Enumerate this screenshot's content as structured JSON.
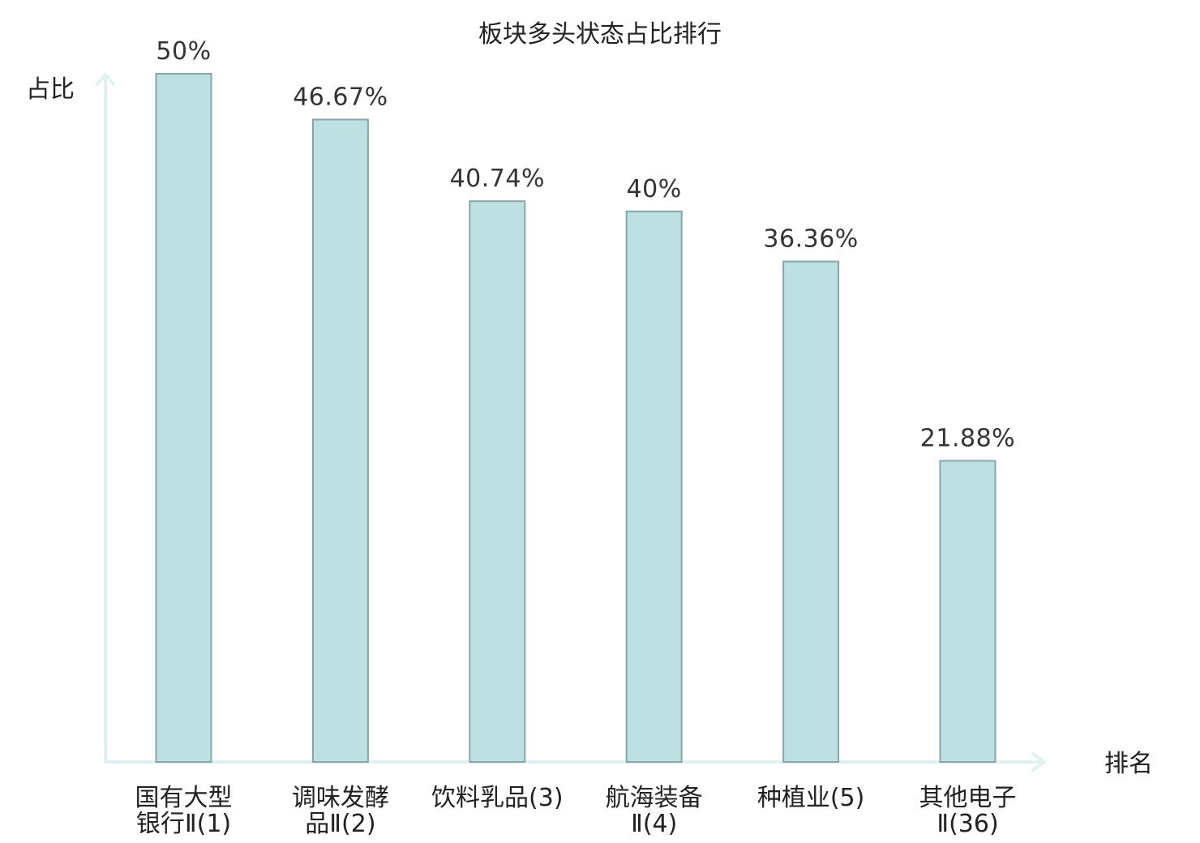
{
  "chart_data": {
    "type": "bar",
    "title": "板块多头状态占比排行",
    "ylabel": "占比",
    "xlabel": "排名",
    "ylim": [
      0,
      50
    ],
    "categories": [
      [
        "国有大型",
        "银行Ⅱ(1)"
      ],
      [
        "调味发酵",
        "品Ⅱ(2)"
      ],
      [
        "饮料乳品(3)"
      ],
      [
        "航海装备",
        "Ⅱ(4)"
      ],
      [
        "种植业(5)"
      ],
      [
        "其他电子",
        "Ⅱ(36)"
      ]
    ],
    "values": [
      50,
      46.67,
      40.74,
      40,
      36.36,
      21.88
    ],
    "value_labels": [
      "50%",
      "46.67%",
      "40.74%",
      "40%",
      "36.36%",
      "21.88%"
    ],
    "highlight_index": 5,
    "colors": {
      "bar_fill": "#bde0e3",
      "bar_stroke": "#86a7aa",
      "axis": "#e0f2f0",
      "text": "#222222",
      "highlight_text": "#e02020"
    },
    "grid": false,
    "legend": "none"
  }
}
